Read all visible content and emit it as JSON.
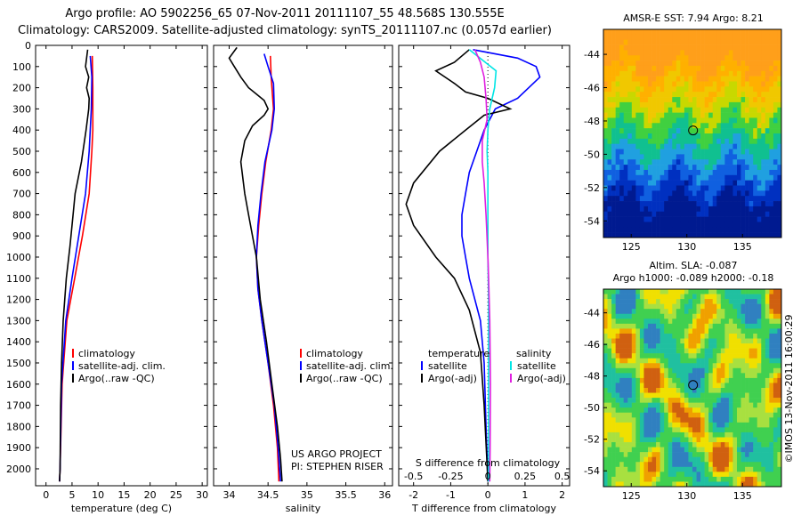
{
  "header": {
    "line1": "Argo profile: AO 5902256_65 07-Nov-2011 20111107_55 48.568S 130.555E",
    "line2": "Climatology: CARS2009. Satellite-adjusted climatology: synTS_20111107.nc (0.057d earlier)"
  },
  "colors": {
    "climatology": "#ff0000",
    "satellite": "#0000ff",
    "argo": "#000000",
    "sat_salinity": "#00e5e5",
    "argo_salinity": "#e020e0"
  },
  "chart_data": [
    {
      "type": "line",
      "id": "temperature",
      "xlabel": "temperature (deg C)",
      "ylabel": "",
      "xlim": [
        -2,
        31
      ],
      "ylim": [
        0,
        2080
      ],
      "x_ticks": [
        0,
        5,
        10,
        15,
        20,
        25,
        30
      ],
      "y_ticks": [
        0,
        100,
        200,
        300,
        400,
        500,
        600,
        700,
        800,
        900,
        1000,
        1100,
        1200,
        1300,
        1400,
        1500,
        1600,
        1700,
        1800,
        1900,
        2000
      ],
      "legend": [
        "climatology",
        "satellite-adj. clim.",
        "Argo(..raw -QC)"
      ],
      "series": [
        {
          "name": "climatology",
          "color": "red",
          "points": [
            [
              8.9,
              50
            ],
            [
              9.0,
              200
            ],
            [
              9.0,
              400
            ],
            [
              8.8,
              500
            ],
            [
              8.3,
              700
            ],
            [
              7.0,
              900
            ],
            [
              5.5,
              1100
            ],
            [
              4.0,
              1300
            ],
            [
              3.1,
              1600
            ],
            [
              2.7,
              2000
            ],
            [
              2.6,
              2060
            ]
          ]
        },
        {
          "name": "satellite-adj. clim.",
          "color": "blue",
          "points": [
            [
              8.5,
              50
            ],
            [
              8.8,
              150
            ],
            [
              8.7,
              300
            ],
            [
              8.3,
              500
            ],
            [
              7.6,
              700
            ],
            [
              6.3,
              900
            ],
            [
              5.0,
              1100
            ],
            [
              3.8,
              1300
            ],
            [
              3.0,
              1600
            ],
            [
              2.7,
              2000
            ],
            [
              2.6,
              2060
            ]
          ]
        },
        {
          "name": "Argo(..raw -QC)",
          "color": "black",
          "points": [
            [
              8.0,
              20
            ],
            [
              7.6,
              100
            ],
            [
              8.2,
              150
            ],
            [
              7.8,
              200
            ],
            [
              8.3,
              250
            ],
            [
              8.2,
              300
            ],
            [
              7.7,
              400
            ],
            [
              6.8,
              550
            ],
            [
              5.6,
              700
            ],
            [
              5.2,
              800
            ],
            [
              4.6,
              950
            ],
            [
              3.9,
              1100
            ],
            [
              3.3,
              1300
            ],
            [
              3.0,
              1500
            ],
            [
              2.8,
              1700
            ],
            [
              2.7,
              2000
            ],
            [
              2.6,
              2060
            ]
          ]
        }
      ]
    },
    {
      "type": "line",
      "id": "salinity",
      "xlabel": "salinity",
      "xlim": [
        33.8,
        36.1
      ],
      "ylim": [
        0,
        2080
      ],
      "x_ticks": [
        34,
        34.5,
        35,
        35.5,
        36
      ],
      "legend": [
        "climatology",
        "satellite-adj. clim.",
        "Argo(..raw -QC)"
      ],
      "annotation": [
        "US ARGO PROJECT",
        "PI: STEPHEN RISER"
      ],
      "series": [
        {
          "name": "climatology",
          "color": "red",
          "points": [
            [
              34.53,
              50
            ],
            [
              34.54,
              150
            ],
            [
              34.56,
              250
            ],
            [
              34.57,
              300
            ],
            [
              34.54,
              400
            ],
            [
              34.47,
              550
            ],
            [
              34.42,
              700
            ],
            [
              34.38,
              850
            ],
            [
              34.35,
              1000
            ],
            [
              34.37,
              1150
            ],
            [
              34.42,
              1300
            ],
            [
              34.5,
              1500
            ],
            [
              34.57,
              1700
            ],
            [
              34.62,
              1900
            ],
            [
              34.64,
              2060
            ]
          ]
        },
        {
          "name": "satellite-adj. clim.",
          "color": "blue",
          "points": [
            [
              34.45,
              40
            ],
            [
              34.5,
              100
            ],
            [
              34.57,
              180
            ],
            [
              34.58,
              300
            ],
            [
              34.55,
              400
            ],
            [
              34.46,
              550
            ],
            [
              34.41,
              700
            ],
            [
              34.37,
              850
            ],
            [
              34.35,
              1000
            ],
            [
              34.37,
              1150
            ],
            [
              34.42,
              1300
            ],
            [
              34.5,
              1500
            ],
            [
              34.58,
              1700
            ],
            [
              34.63,
              1900
            ],
            [
              34.66,
              2060
            ]
          ]
        },
        {
          "name": "Argo(..raw -QC)",
          "color": "black",
          "points": [
            [
              34.1,
              10
            ],
            [
              34.0,
              60
            ],
            [
              34.05,
              90
            ],
            [
              34.15,
              150
            ],
            [
              34.25,
              200
            ],
            [
              34.35,
              230
            ],
            [
              34.45,
              260
            ],
            [
              34.5,
              300
            ],
            [
              34.45,
              330
            ],
            [
              34.3,
              380
            ],
            [
              34.2,
              450
            ],
            [
              34.15,
              550
            ],
            [
              34.2,
              700
            ],
            [
              34.25,
              800
            ],
            [
              34.3,
              900
            ],
            [
              34.35,
              1000
            ],
            [
              34.4,
              1200
            ],
            [
              34.48,
              1400
            ],
            [
              34.55,
              1600
            ],
            [
              34.62,
              1800
            ],
            [
              34.66,
              1950
            ],
            [
              34.68,
              2060
            ]
          ]
        }
      ]
    },
    {
      "type": "line",
      "id": "differences",
      "xlabel": "T difference from climatology",
      "xlabel_top": "S difference from climatology",
      "xlim": [
        -2.4,
        2.2
      ],
      "ylim": [
        0,
        2080
      ],
      "x_ticks": [
        -2,
        -1,
        0,
        1,
        2
      ],
      "x_ticks_s": [
        -0.5,
        -0.25,
        0,
        0.25,
        0.5
      ],
      "legend_t": {
        "title": "temperature",
        "items": [
          "satellite",
          "Argo(-adj)"
        ]
      },
      "legend_s": {
        "title": "salinity",
        "items": [
          "satellite",
          "Argo(-adj)"
        ]
      },
      "series": [
        {
          "name": "T satellite",
          "color": "blue",
          "points": [
            [
              -0.4,
              20
            ],
            [
              0.8,
              60
            ],
            [
              1.3,
              100
            ],
            [
              1.4,
              150
            ],
            [
              0.8,
              250
            ],
            [
              0.2,
              300
            ],
            [
              -0.1,
              400
            ],
            [
              -0.3,
              500
            ],
            [
              -0.5,
              600
            ],
            [
              -0.6,
              700
            ],
            [
              -0.7,
              800
            ],
            [
              -0.7,
              900
            ],
            [
              -0.6,
              1000
            ],
            [
              -0.5,
              1100
            ],
            [
              -0.2,
              1300
            ],
            [
              -0.1,
              1500
            ],
            [
              -0.05,
              1800
            ],
            [
              0,
              2060
            ]
          ]
        },
        {
          "name": "T Argo(-adj)",
          "color": "black",
          "points": [
            [
              -0.5,
              20
            ],
            [
              -0.9,
              80
            ],
            [
              -1.4,
              120
            ],
            [
              -0.9,
              180
            ],
            [
              -0.6,
              220
            ],
            [
              0.0,
              250
            ],
            [
              0.6,
              300
            ],
            [
              -0.1,
              330
            ],
            [
              -0.6,
              400
            ],
            [
              -1.3,
              500
            ],
            [
              -2.0,
              650
            ],
            [
              -2.2,
              750
            ],
            [
              -2.0,
              850
            ],
            [
              -1.4,
              1000
            ],
            [
              -0.9,
              1100
            ],
            [
              -0.5,
              1250
            ],
            [
              -0.2,
              1450
            ],
            [
              -0.1,
              1700
            ],
            [
              0,
              2060
            ]
          ]
        },
        {
          "name": "S satellite",
          "color": "cyan",
          "points": [
            [
              -0.5,
              20
            ],
            [
              0.0,
              90
            ],
            [
              0.22,
              120
            ],
            [
              0.18,
              200
            ],
            [
              0.05,
              300
            ],
            [
              0.0,
              400
            ],
            [
              -0.02,
              500
            ],
            [
              0.0,
              600
            ],
            [
              0.0,
              800
            ],
            [
              0.0,
              1000
            ],
            [
              0.02,
              1200
            ],
            [
              0.02,
              1500
            ],
            [
              0.02,
              1800
            ],
            [
              0.02,
              2060
            ]
          ]
        },
        {
          "name": "S Argo(-adj)",
          "color": "magenta",
          "points": [
            [
              -0.35,
              20
            ],
            [
              -0.2,
              80
            ],
            [
              -0.1,
              150
            ],
            [
              -0.05,
              250
            ],
            [
              -0.02,
              350
            ],
            [
              -0.15,
              450
            ],
            [
              -0.15,
              550
            ],
            [
              -0.1,
              650
            ],
            [
              -0.05,
              800
            ],
            [
              0.0,
              1000
            ],
            [
              0.02,
              1100
            ],
            [
              0.05,
              1300
            ],
            [
              0.07,
              1600
            ],
            [
              0.06,
              1900
            ],
            [
              0.05,
              2060
            ]
          ]
        }
      ]
    },
    {
      "type": "heatmap",
      "id": "sst_map",
      "title": "AMSR-E SST: 7.94 Argo: 8.21",
      "xlim": [
        122.5,
        138.5
      ],
      "ylim": [
        -55,
        -42.5
      ],
      "x_ticks": [
        125,
        130,
        135
      ],
      "y_ticks": [
        -44,
        -46,
        -48,
        -50,
        -52,
        -54
      ],
      "marker": [
        130.555,
        -48.568
      ]
    },
    {
      "type": "heatmap",
      "id": "sla_map",
      "title_lines": [
        "Altim. SLA: -0.087",
        "Argo h1000: -0.089 h2000: -0.18"
      ],
      "xlim": [
        122.5,
        138.5
      ],
      "ylim": [
        -55,
        -42.5
      ],
      "x_ticks": [
        125,
        130,
        135
      ],
      "y_ticks": [
        -44,
        -46,
        -48,
        -50,
        -52,
        -54
      ],
      "marker": [
        130.555,
        -48.568
      ],
      "credit": "©IMOS 13-Nov-2011 16:00:29"
    }
  ]
}
